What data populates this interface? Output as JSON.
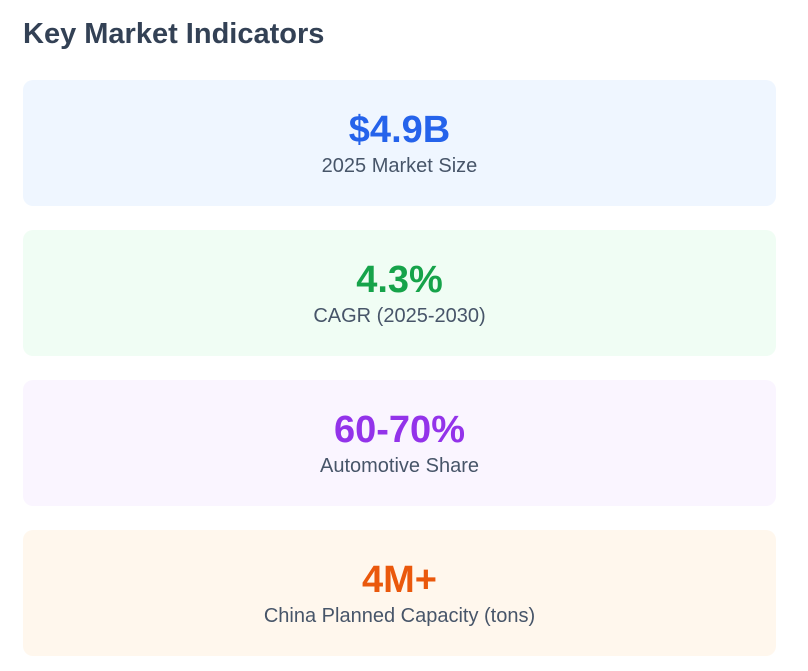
{
  "title": "Key Market Indicators",
  "indicators": [
    {
      "value": "$4.9B",
      "label": "2025 Market Size",
      "color": "#2563eb",
      "background": "#eff6ff"
    },
    {
      "value": "4.3%",
      "label": "CAGR (2025-2030)",
      "color": "#16a34a",
      "background": "#f0fdf4"
    },
    {
      "value": "60-70%",
      "label": "Automotive Share",
      "color": "#9333ea",
      "background": "#faf5ff"
    },
    {
      "value": "4M+",
      "label": "China Planned Capacity (tons)",
      "color": "#ea580c",
      "background": "#fff7ed"
    }
  ]
}
